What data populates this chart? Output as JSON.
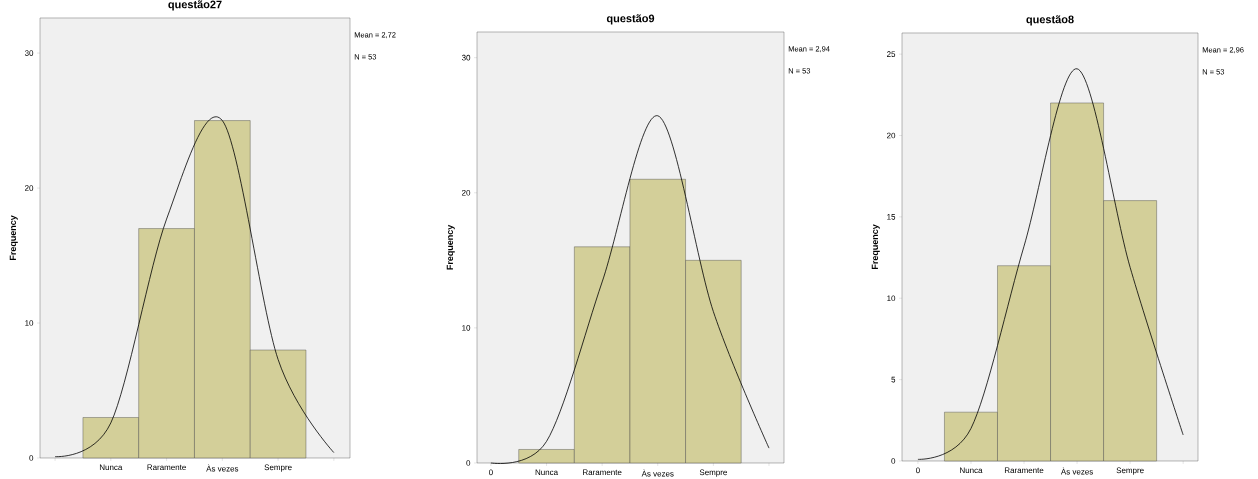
{
  "chart_data": [
    {
      "type": "bar",
      "title": "questão27",
      "ylabel": "Frequency",
      "categories": [
        null,
        "Nunca",
        "Raramente",
        "Às vezes",
        "Sempre",
        null
      ],
      "values": [
        null,
        3,
        17,
        25,
        8,
        null
      ],
      "color": "#d3cf99",
      "ylim": [
        0,
        32.6
      ],
      "yticks": [
        0,
        10,
        20,
        30
      ],
      "annotations": [
        "Mean = 2,72",
        "N = 53"
      ],
      "series": [
        {
          "type": "line",
          "color": "#000000",
          "values": [
            0.1,
            2.6,
            17.7,
            25.0,
            7.3,
            0.4
          ]
        }
      ]
    },
    {
      "type": "bar",
      "title": "questão9",
      "ylabel": "Frequency",
      "categories": [
        "0",
        "Nunca",
        "Raramente",
        "Às vezes",
        "Sempre",
        null
      ],
      "values": [
        null,
        1,
        16,
        21,
        15,
        null
      ],
      "color": "#d3cf99",
      "ylim": [
        0,
        31.9
      ],
      "yticks": [
        0,
        10,
        20,
        30
      ],
      "annotations": [
        "Mean = 2,94",
        "N = 53"
      ],
      "series": [
        {
          "type": "line",
          "color": "#000000",
          "values": [
            0.0,
            1.6,
            13.4,
            25.7,
            11.2,
            1.1
          ]
        }
      ]
    },
    {
      "type": "bar",
      "title": "questão8",
      "ylabel": "Frequency",
      "categories": [
        "0",
        "Nunca",
        "Raramente",
        "Às vezes",
        "Sempre",
        null
      ],
      "values": [
        null,
        3,
        12,
        22,
        16,
        null
      ],
      "color": "#d3cf99",
      "ylim": [
        0,
        26.3
      ],
      "yticks": [
        0,
        5,
        10,
        15,
        20,
        25
      ],
      "annotations": [
        "Mean = 2,96",
        "N = 53"
      ],
      "series": [
        {
          "type": "line",
          "color": "#000000",
          "values": [
            0.1,
            2.0,
            13.2,
            24.1,
            11.9,
            1.6
          ]
        }
      ]
    }
  ]
}
